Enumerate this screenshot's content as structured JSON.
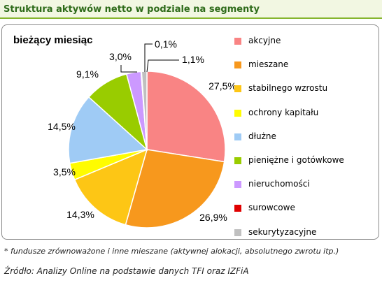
{
  "header": {
    "title": "Struktura aktywów netto w podziale na segmenty"
  },
  "chart_data": {
    "type": "pie",
    "subtitle": "bieżący miesiąc",
    "slices": [
      {
        "name": "akcyjne",
        "value": 27.5,
        "label": "27,5%",
        "color": "#f98484"
      },
      {
        "name": "mieszane",
        "value": 26.9,
        "label": "26,9%",
        "color": "#f7981d"
      },
      {
        "name": "stabilnego wzrostu",
        "value": 14.3,
        "label": "14,3%",
        "color": "#fdc615"
      },
      {
        "name": "ochrony kapitału",
        "value": 3.5,
        "label": "3,5%",
        "color": "#fffc00"
      },
      {
        "name": "dłużne",
        "value": 14.5,
        "label": "14,5%",
        "color": "#9fcbf5"
      },
      {
        "name": "pieniężne i gotówkowe",
        "value": 9.1,
        "label": "9,1%",
        "color": "#99cc00"
      },
      {
        "name": "nieruchomości",
        "value": 3.0,
        "label": "3,0%",
        "color": "#cc99ff"
      },
      {
        "name": "surowcowe",
        "value": 0.1,
        "label": "0,1%",
        "color": "#e00000"
      },
      {
        "name": "sekurytyzacyjne",
        "value": 1.1,
        "label": "1,1%",
        "color": "#c0c0c0"
      }
    ],
    "legend_position": "right"
  },
  "footnote": "* fundusze zrównoważone i inne mieszane (aktywnej alokacji, absolutnego zwrotu itp.)",
  "source": "Źródło: Analizy Online na podstawie danych TFI oraz IZFiA"
}
